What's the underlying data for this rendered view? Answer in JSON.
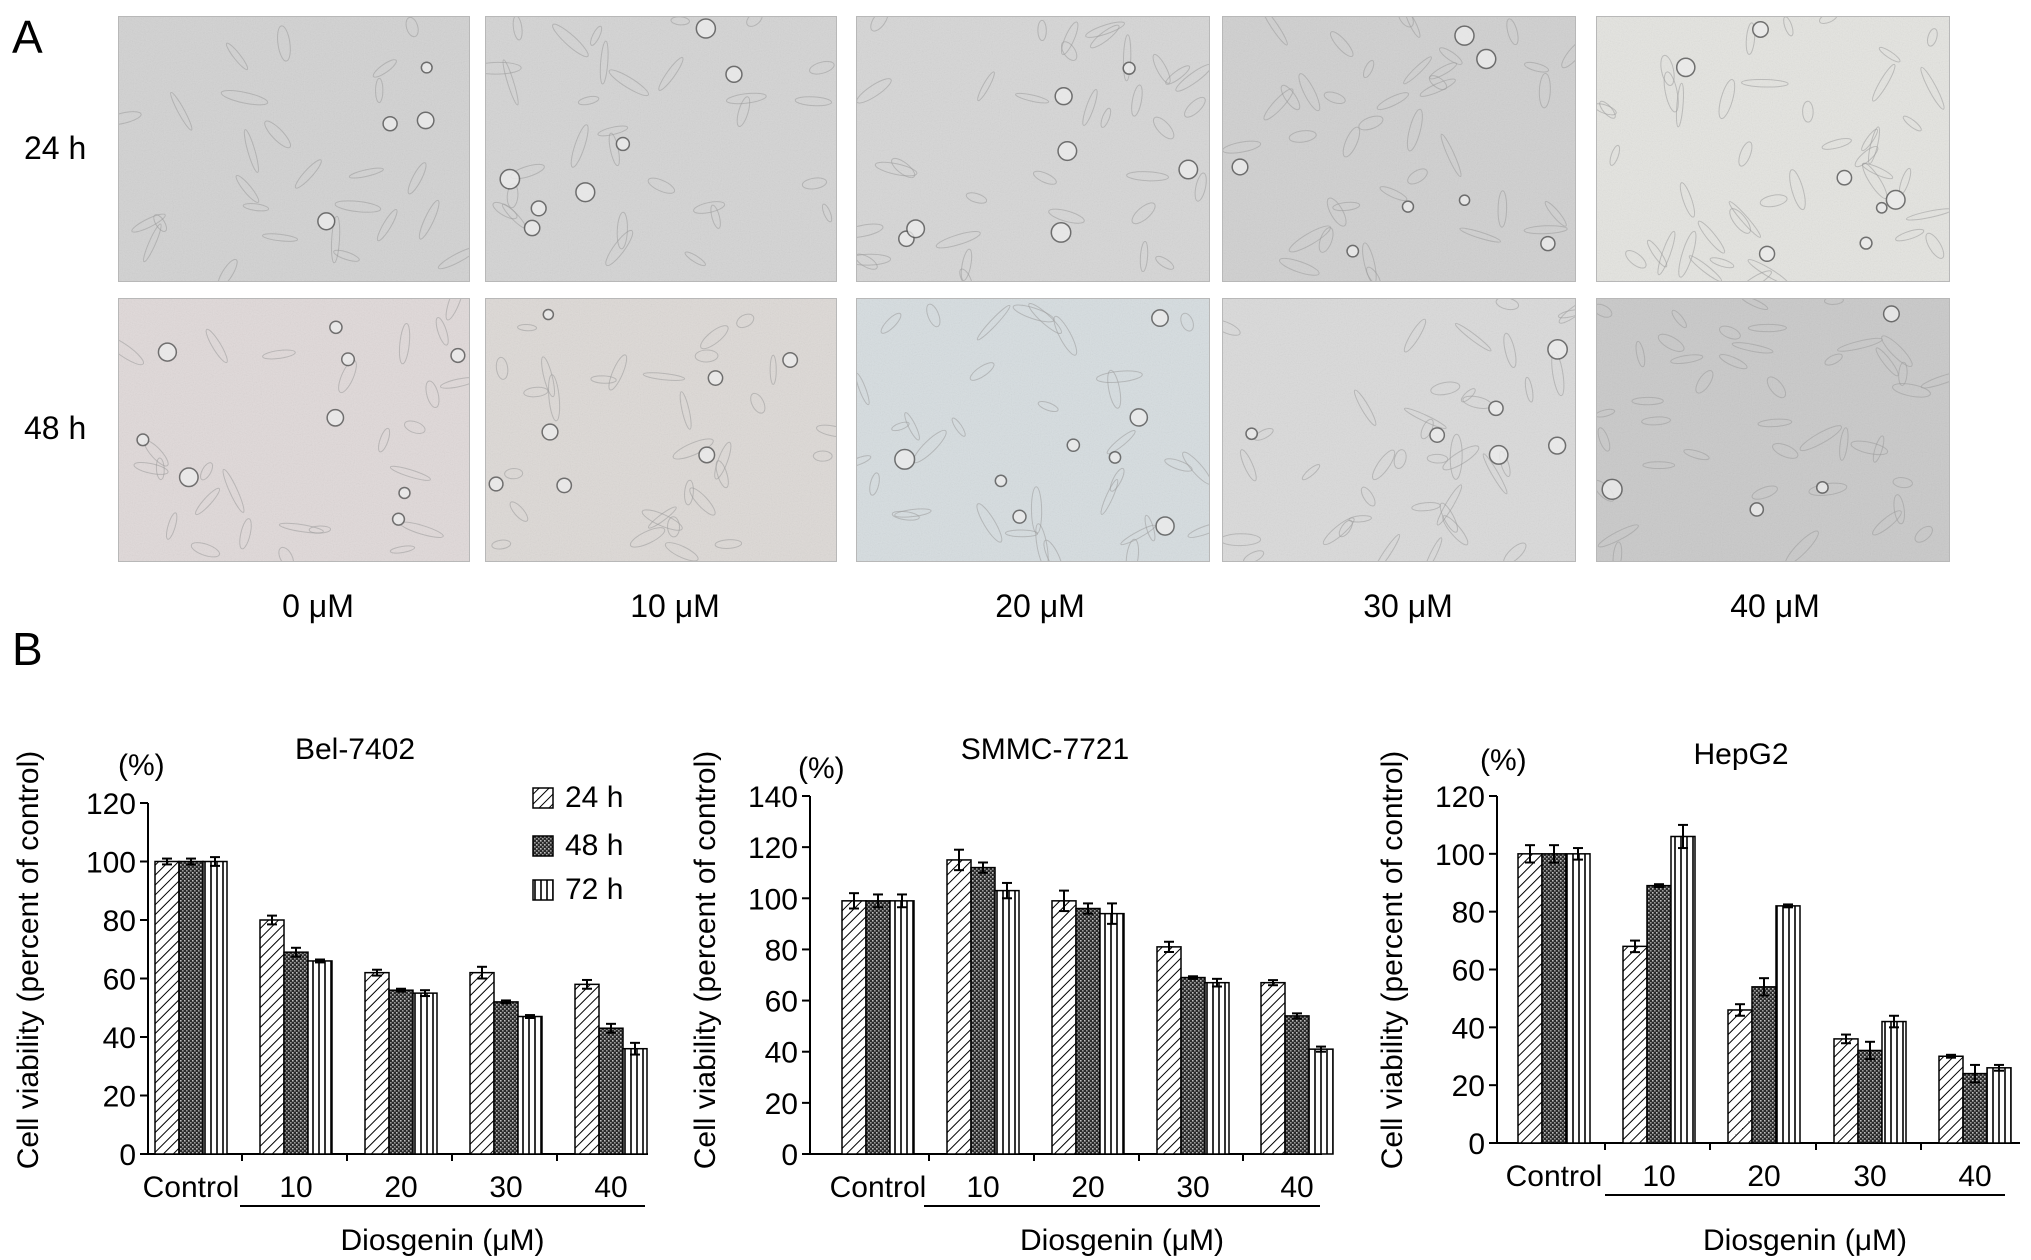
{
  "panel_a": {
    "letter": "A",
    "rows": [
      {
        "label": "24 h"
      },
      {
        "label": "48 h"
      }
    ],
    "concentrations": [
      "0 μM",
      "10 μM",
      "20 μM",
      "30 μM",
      "40 μM"
    ]
  },
  "panel_b": {
    "letter": "B"
  },
  "legend": {
    "entries": [
      {
        "label": "24 h",
        "pattern": "diagonal-hatch"
      },
      {
        "label": "48 h",
        "pattern": "dark-crosshatch"
      },
      {
        "label": "72 h",
        "pattern": "vertical-stripes"
      }
    ]
  },
  "chart_data": [
    {
      "type": "bar",
      "title": "Bel-7402",
      "unit_label": "(%)",
      "ylabel": "Cell viability (percent of control)",
      "xlabel": "Diosgenin (μM)",
      "categories": [
        "Control",
        "10",
        "20",
        "30",
        "40"
      ],
      "ylim": [
        0,
        120
      ],
      "yticks": [
        0,
        20,
        40,
        60,
        80,
        100,
        120
      ],
      "series": [
        {
          "name": "24 h",
          "values": [
            100,
            80,
            62,
            62,
            58
          ],
          "errors": [
            1,
            1.5,
            1,
            2,
            1.5
          ]
        },
        {
          "name": "48 h",
          "values": [
            100,
            69,
            56,
            52,
            43
          ],
          "errors": [
            1,
            1.5,
            0.5,
            0.5,
            1.5
          ]
        },
        {
          "name": "72 h",
          "values": [
            100,
            66,
            55,
            47,
            36
          ],
          "errors": [
            1.5,
            0.5,
            1,
            0.5,
            2
          ]
        }
      ]
    },
    {
      "type": "bar",
      "title": "SMMC-7721",
      "unit_label": "(%)",
      "ylabel": "Cell viability (percent of control)",
      "xlabel": "Diosgenin (μM)",
      "categories": [
        "Control",
        "10",
        "20",
        "30",
        "40"
      ],
      "ylim": [
        0,
        140
      ],
      "yticks": [
        0,
        20,
        40,
        60,
        80,
        100,
        120,
        140
      ],
      "series": [
        {
          "name": "24 h",
          "values": [
            99,
            115,
            99,
            81,
            67
          ],
          "errors": [
            3,
            4,
            4,
            2,
            1
          ]
        },
        {
          "name": "48 h",
          "values": [
            99,
            112,
            96,
            69,
            54
          ],
          "errors": [
            2.5,
            2,
            2,
            0.5,
            1
          ]
        },
        {
          "name": "72 h",
          "values": [
            99,
            103,
            94,
            67,
            41
          ],
          "errors": [
            2.5,
            3,
            4,
            1.5,
            1
          ]
        }
      ]
    },
    {
      "type": "bar",
      "title": "HepG2",
      "unit_label": "(%)",
      "ylabel": "Cell viability (percent of control)",
      "xlabel": "Diosgenin (μM)",
      "categories": [
        "Control",
        "10",
        "20",
        "30",
        "40"
      ],
      "ylim": [
        0,
        120
      ],
      "yticks": [
        0,
        20,
        40,
        60,
        80,
        100,
        120
      ],
      "series": [
        {
          "name": "24 h",
          "values": [
            100,
            68,
            46,
            36,
            30
          ],
          "errors": [
            3,
            2,
            2,
            1.5,
            0.5
          ]
        },
        {
          "name": "48 h",
          "values": [
            100,
            89,
            54,
            32,
            24
          ],
          "errors": [
            3,
            0.5,
            3,
            3,
            3
          ]
        },
        {
          "name": "72 h",
          "values": [
            100,
            106,
            82,
            42,
            26
          ],
          "errors": [
            2,
            4,
            0.5,
            2,
            1
          ]
        }
      ]
    }
  ]
}
